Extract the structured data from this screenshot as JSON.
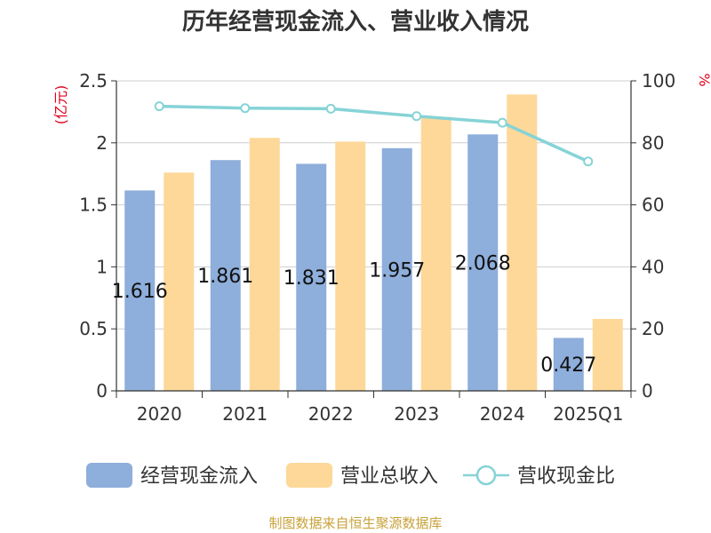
{
  "chart_data": {
    "type": "bar",
    "title": "历年经营现金流入、营业收入情况",
    "left_unit": "(亿元)",
    "right_unit": "%",
    "categories": [
      "2020",
      "2021",
      "2022",
      "2023",
      "2024",
      "2025Q1"
    ],
    "left_axis": {
      "ylim": [
        0,
        2.5
      ],
      "ticks": [
        "0",
        "0.5",
        "1",
        "1.5",
        "2",
        "2.5"
      ],
      "tick_values": [
        0,
        0.5,
        1,
        1.5,
        2,
        2.5
      ]
    },
    "right_axis": {
      "ylim": [
        0,
        100
      ],
      "ticks": [
        "0",
        "20",
        "40",
        "60",
        "80",
        "100"
      ],
      "tick_values": [
        0,
        20,
        40,
        60,
        80,
        100
      ]
    },
    "grid": true,
    "legend_position": "bottom",
    "series": [
      {
        "name": "经营现金流入",
        "type": "bar",
        "axis": "left",
        "color": "#8eaedb",
        "values": [
          1.616,
          1.861,
          1.831,
          1.957,
          2.068,
          0.427
        ],
        "labels": [
          "1.616",
          "1.861",
          "1.831",
          "1.957",
          "2.068",
          "0.427"
        ]
      },
      {
        "name": "营业总收入",
        "type": "bar",
        "axis": "left",
        "color": "#fdd899",
        "values": [
          1.76,
          2.04,
          2.01,
          2.21,
          2.39,
          0.58
        ]
      },
      {
        "name": "营收现金比",
        "type": "line",
        "axis": "right",
        "color": "#86d3d6",
        "values": [
          91.8,
          91.2,
          91.0,
          88.6,
          86.5,
          74.0
        ]
      }
    ],
    "source": "制图数据来自恒生聚源数据库"
  }
}
